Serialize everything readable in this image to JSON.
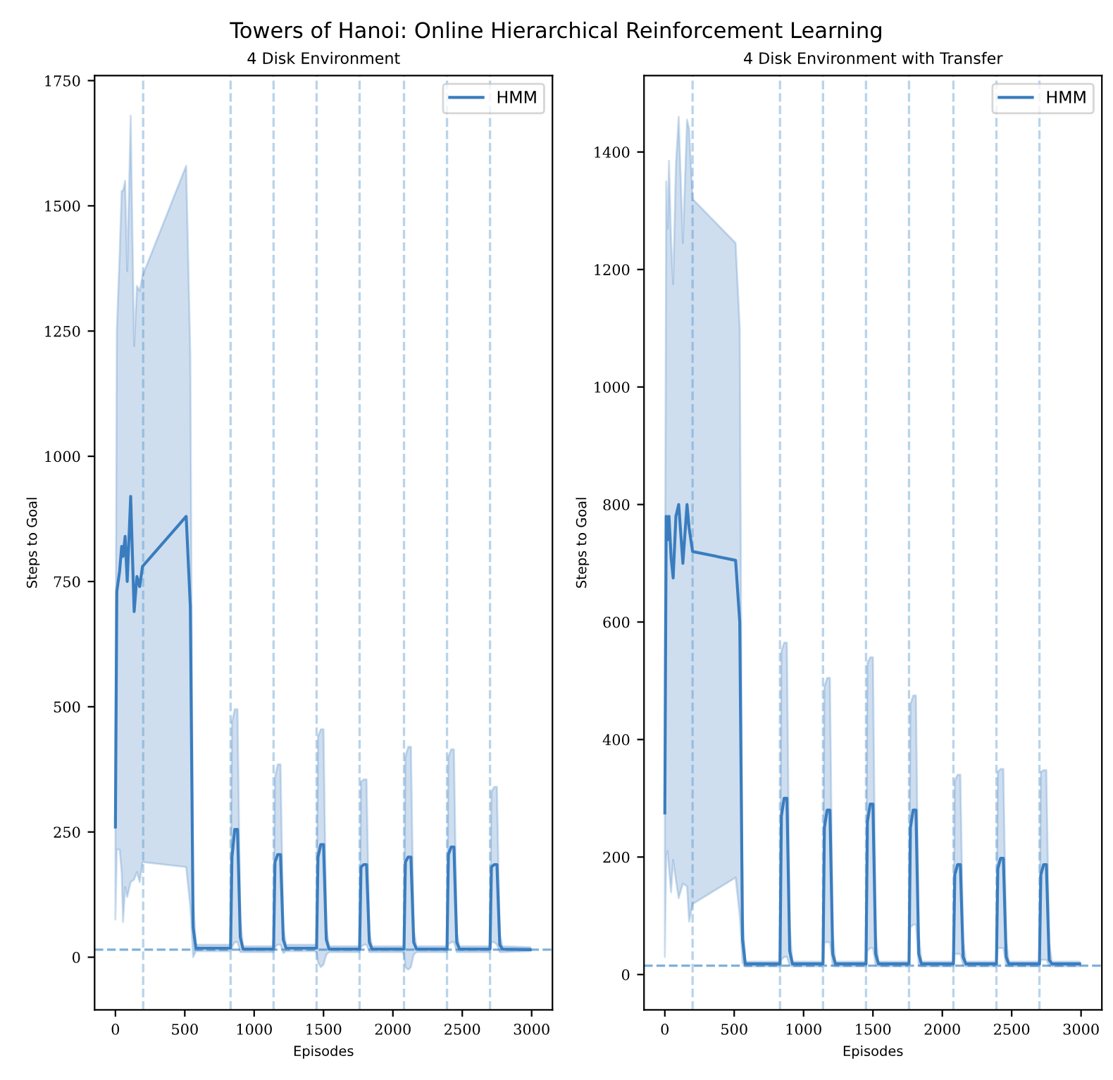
{
  "chart_data": [
    {
      "type": "line",
      "title": "4 Disk Environment",
      "xlabel": "Episodes",
      "ylabel": "Steps to Goal",
      "annotations": [
        "Towers of Hanoi: Online Hierarchical Reinforcement Learning"
      ],
      "xlim": [
        -150,
        3150
      ],
      "ylim": [
        -105,
        1760
      ],
      "xticks": [
        0,
        500,
        1000,
        1500,
        2000,
        2500,
        3000
      ],
      "yticks": [
        0,
        250,
        500,
        750,
        1000,
        1250,
        1500,
        1750
      ],
      "grid": false,
      "legend": "top right",
      "line_style": "solid",
      "marker": "none",
      "ref_lines": [
        {
          "axis": "y",
          "value": 15,
          "color": "#7fb0d8",
          "line_style": "dashed"
        },
        {
          "axis": "x",
          "value": 200,
          "color": "#b9d4ea",
          "line_style": "dashed"
        },
        {
          "axis": "x",
          "value": 830,
          "color": "#b9d4ea",
          "line_style": "dashed"
        },
        {
          "axis": "x",
          "value": 1140,
          "color": "#b9d4ea",
          "line_style": "dashed"
        },
        {
          "axis": "x",
          "value": 1450,
          "color": "#b9d4ea",
          "line_style": "dashed"
        },
        {
          "axis": "x",
          "value": 1760,
          "color": "#b9d4ea",
          "line_style": "dashed"
        },
        {
          "axis": "x",
          "value": 2080,
          "color": "#b9d4ea",
          "line_style": "dashed"
        },
        {
          "axis": "x",
          "value": 2390,
          "color": "#b9d4ea",
          "line_style": "dashed"
        },
        {
          "axis": "x",
          "value": 2700,
          "color": "#b9d4ea",
          "line_style": "dashed"
        }
      ],
      "series": [
        {
          "name": "HMM",
          "color": "#3a7dbf",
          "x": [
            0,
            10,
            30,
            45,
            55,
            70,
            85,
            110,
            135,
            155,
            175,
            195,
            510,
            540,
            560,
            580,
            820,
            830,
            840,
            860,
            880,
            900,
            920,
            1130,
            1140,
            1150,
            1170,
            1190,
            1210,
            1230,
            1440,
            1450,
            1460,
            1480,
            1500,
            1520,
            1540,
            1750,
            1760,
            1770,
            1790,
            1810,
            1830,
            1850,
            2070,
            2080,
            2090,
            2110,
            2130,
            2150,
            2170,
            2380,
            2390,
            2400,
            2420,
            2440,
            2460,
            2480,
            2690,
            2700,
            2710,
            2730,
            2750,
            2770,
            2790,
            2990
          ],
          "values": [
            260,
            730,
            770,
            820,
            800,
            840,
            750,
            920,
            690,
            760,
            740,
            780,
            880,
            700,
            60,
            18,
            18,
            18,
            200,
            255,
            255,
            40,
            16,
            16,
            16,
            190,
            205,
            205,
            35,
            18,
            18,
            18,
            200,
            225,
            225,
            35,
            16,
            16,
            16,
            180,
            185,
            185,
            30,
            16,
            16,
            16,
            190,
            200,
            200,
            30,
            16,
            16,
            16,
            205,
            220,
            220,
            30,
            16,
            16,
            16,
            180,
            185,
            185,
            25,
            16,
            15
          ],
          "lower": [
            75,
            215,
            215,
            170,
            70,
            140,
            120,
            150,
            155,
            170,
            150,
            190,
            180,
            100,
            0,
            12,
            12,
            12,
            20,
            30,
            30,
            10,
            10,
            10,
            10,
            20,
            25,
            25,
            8,
            12,
            12,
            10,
            -10,
            -20,
            -15,
            5,
            10,
            10,
            10,
            20,
            25,
            25,
            10,
            10,
            10,
            5,
            -20,
            -25,
            -20,
            5,
            10,
            10,
            10,
            25,
            30,
            30,
            10,
            10,
            10,
            10,
            30,
            30,
            25,
            10,
            10,
            12
          ],
          "upper": [
            440,
            1250,
            1400,
            1530,
            1530,
            1550,
            1370,
            1680,
            1220,
            1340,
            1330,
            1360,
            1580,
            1200,
            120,
            25,
            25,
            25,
            470,
            495,
            495,
            80,
            22,
            22,
            22,
            360,
            385,
            385,
            60,
            25,
            25,
            25,
            440,
            455,
            455,
            60,
            22,
            22,
            22,
            350,
            355,
            355,
            50,
            22,
            22,
            22,
            400,
            420,
            420,
            55,
            22,
            22,
            22,
            400,
            415,
            415,
            50,
            22,
            22,
            22,
            330,
            340,
            340,
            45,
            22,
            20
          ]
        }
      ]
    },
    {
      "type": "line",
      "title": "4 Disk Environment with Transfer",
      "xlabel": "Episodes",
      "ylabel": "Steps to Goal",
      "xlim": [
        -150,
        3150
      ],
      "ylim": [
        -60,
        1530
      ],
      "xticks": [
        0,
        500,
        1000,
        1500,
        2000,
        2500,
        3000
      ],
      "yticks": [
        0,
        200,
        400,
        600,
        800,
        1000,
        1200,
        1400
      ],
      "grid": false,
      "legend": "top right",
      "line_style": "solid",
      "marker": "none",
      "ref_lines": [
        {
          "axis": "y",
          "value": 15,
          "color": "#7fb0d8",
          "line_style": "dashed"
        },
        {
          "axis": "x",
          "value": 200,
          "color": "#b9d4ea",
          "line_style": "dashed"
        },
        {
          "axis": "x",
          "value": 830,
          "color": "#b9d4ea",
          "line_style": "dashed"
        },
        {
          "axis": "x",
          "value": 1140,
          "color": "#b9d4ea",
          "line_style": "dashed"
        },
        {
          "axis": "x",
          "value": 1450,
          "color": "#b9d4ea",
          "line_style": "dashed"
        },
        {
          "axis": "x",
          "value": 1760,
          "color": "#b9d4ea",
          "line_style": "dashed"
        },
        {
          "axis": "x",
          "value": 2080,
          "color": "#b9d4ea",
          "line_style": "dashed"
        },
        {
          "axis": "x",
          "value": 2390,
          "color": "#b9d4ea",
          "line_style": "dashed"
        },
        {
          "axis": "x",
          "value": 2700,
          "color": "#b9d4ea",
          "line_style": "dashed"
        }
      ],
      "series": [
        {
          "name": "HMM",
          "color": "#3a7dbf",
          "x": [
            0,
            10,
            20,
            30,
            45,
            60,
            80,
            100,
            130,
            160,
            175,
            200,
            510,
            540,
            560,
            580,
            820,
            830,
            840,
            860,
            880,
            900,
            920,
            1130,
            1140,
            1150,
            1170,
            1190,
            1210,
            1230,
            1440,
            1450,
            1460,
            1480,
            1500,
            1520,
            1540,
            1750,
            1760,
            1770,
            1790,
            1810,
            1830,
            1850,
            2070,
            2080,
            2090,
            2110,
            2130,
            2150,
            2170,
            2380,
            2390,
            2400,
            2420,
            2440,
            2460,
            2480,
            2690,
            2700,
            2710,
            2730,
            2750,
            2770,
            2790,
            2990
          ],
          "values": [
            275,
            780,
            740,
            780,
            710,
            675,
            780,
            800,
            700,
            800,
            760,
            720,
            705,
            600,
            60,
            18,
            18,
            18,
            270,
            300,
            300,
            40,
            18,
            18,
            18,
            250,
            280,
            280,
            35,
            18,
            18,
            18,
            260,
            290,
            290,
            35,
            18,
            18,
            18,
            250,
            280,
            280,
            35,
            18,
            18,
            18,
            170,
            187,
            187,
            30,
            18,
            18,
            18,
            180,
            198,
            198,
            30,
            18,
            18,
            18,
            170,
            187,
            187,
            25,
            18,
            18
          ],
          "lower": [
            30,
            200,
            210,
            180,
            140,
            195,
            160,
            130,
            155,
            150,
            90,
            120,
            165,
            100,
            20,
            14,
            14,
            14,
            25,
            30,
            30,
            15,
            14,
            14,
            14,
            55,
            55,
            55,
            15,
            14,
            14,
            14,
            40,
            45,
            45,
            15,
            14,
            14,
            14,
            80,
            85,
            85,
            15,
            14,
            14,
            14,
            35,
            35,
            35,
            15,
            14,
            14,
            14,
            45,
            45,
            45,
            15,
            14,
            14,
            14,
            25,
            25,
            25,
            15,
            14,
            14
          ],
          "upper": [
            520,
            1350,
            1270,
            1385,
            1250,
            1175,
            1380,
            1460,
            1245,
            1455,
            1440,
            1320,
            1245,
            1100,
            110,
            22,
            22,
            22,
            550,
            565,
            565,
            80,
            22,
            22,
            22,
            490,
            505,
            505,
            70,
            22,
            22,
            22,
            530,
            540,
            540,
            70,
            22,
            22,
            22,
            460,
            475,
            475,
            70,
            22,
            22,
            22,
            330,
            340,
            340,
            60,
            22,
            22,
            22,
            345,
            350,
            350,
            60,
            22,
            22,
            22,
            345,
            348,
            348,
            55,
            22,
            22
          ]
        }
      ]
    }
  ]
}
